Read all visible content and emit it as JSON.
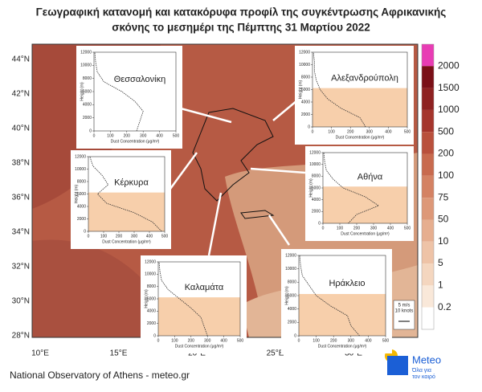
{
  "title": {
    "line1": "Γεωγραφική κατανομή και κατακόρυφα προφίλ της συγκέντρωσης Αφρικανικής",
    "line2": "σκόνης το μεσημέρι της Πέμπτης 31 Μαρτίου 2022"
  },
  "map": {
    "lat_labels": [
      "44°N",
      "42°N",
      "40°N",
      "38°N",
      "36°N",
      "34°N",
      "32°N",
      "30°N",
      "28°N"
    ],
    "lon_labels": [
      "10°E",
      "15°E",
      "20°E",
      "25°E",
      "30°E"
    ]
  },
  "colorbar": {
    "labels": [
      "2000",
      "1500",
      "1000",
      "500",
      "200",
      "100",
      "75",
      "50",
      "10",
      "5",
      "1",
      "0.2"
    ]
  },
  "inset_axes": {
    "ylabel": "Height (m)",
    "xlabel": "Dust Concentration (μg/m³)",
    "yticks": [
      0,
      2000,
      4000,
      6000,
      8000,
      10000,
      12000
    ],
    "xticks": [
      0,
      100,
      200,
      300,
      400,
      500
    ]
  },
  "insets": [
    {
      "label": "Θεσσαλονίκη",
      "height": [
        0,
        1500,
        3000,
        4500,
        6000,
        7500,
        9000,
        10500,
        12000
      ],
      "dust": [
        260,
        280,
        300,
        250,
        170,
        60,
        20,
        10,
        5
      ]
    },
    {
      "label": "Αλεξανδρούπολη",
      "height": [
        0,
        1500,
        3000,
        4500,
        6000,
        7500,
        9000,
        10500,
        12000
      ],
      "dust": [
        280,
        250,
        150,
        80,
        40,
        20,
        10,
        10,
        5
      ]
    },
    {
      "label": "Κέρκυρα",
      "height": [
        0,
        1500,
        3000,
        4500,
        6000,
        7500,
        9000,
        10500,
        12000
      ],
      "dust": [
        480,
        420,
        300,
        120,
        60,
        130,
        90,
        30,
        10
      ]
    },
    {
      "label": "Αθήνα",
      "height": [
        0,
        1500,
        3000,
        4500,
        6000,
        7500,
        9000,
        10500,
        12000
      ],
      "dust": [
        150,
        200,
        330,
        250,
        120,
        60,
        20,
        10,
        5
      ]
    },
    {
      "label": "Καλαμάτα",
      "height": [
        0,
        1500,
        3000,
        4500,
        6000,
        7500,
        9000,
        10500,
        12000
      ],
      "dust": [
        300,
        280,
        260,
        200,
        130,
        60,
        20,
        10,
        5
      ]
    },
    {
      "label": "Ηράκλειο",
      "height": [
        0,
        1500,
        3000,
        4500,
        6000,
        7500,
        9000,
        10500,
        12000
      ],
      "dust": [
        350,
        300,
        280,
        180,
        100,
        60,
        20,
        10,
        5
      ]
    }
  ],
  "wind_legend": {
    "line1": "5 m/s",
    "line2": "10 knots"
  },
  "footer": "National Observatory of Athens - meteo.gr",
  "logo": {
    "name": "Meteo",
    "tagline1": "Όλα για",
    "tagline2": "τον καιρό"
  }
}
